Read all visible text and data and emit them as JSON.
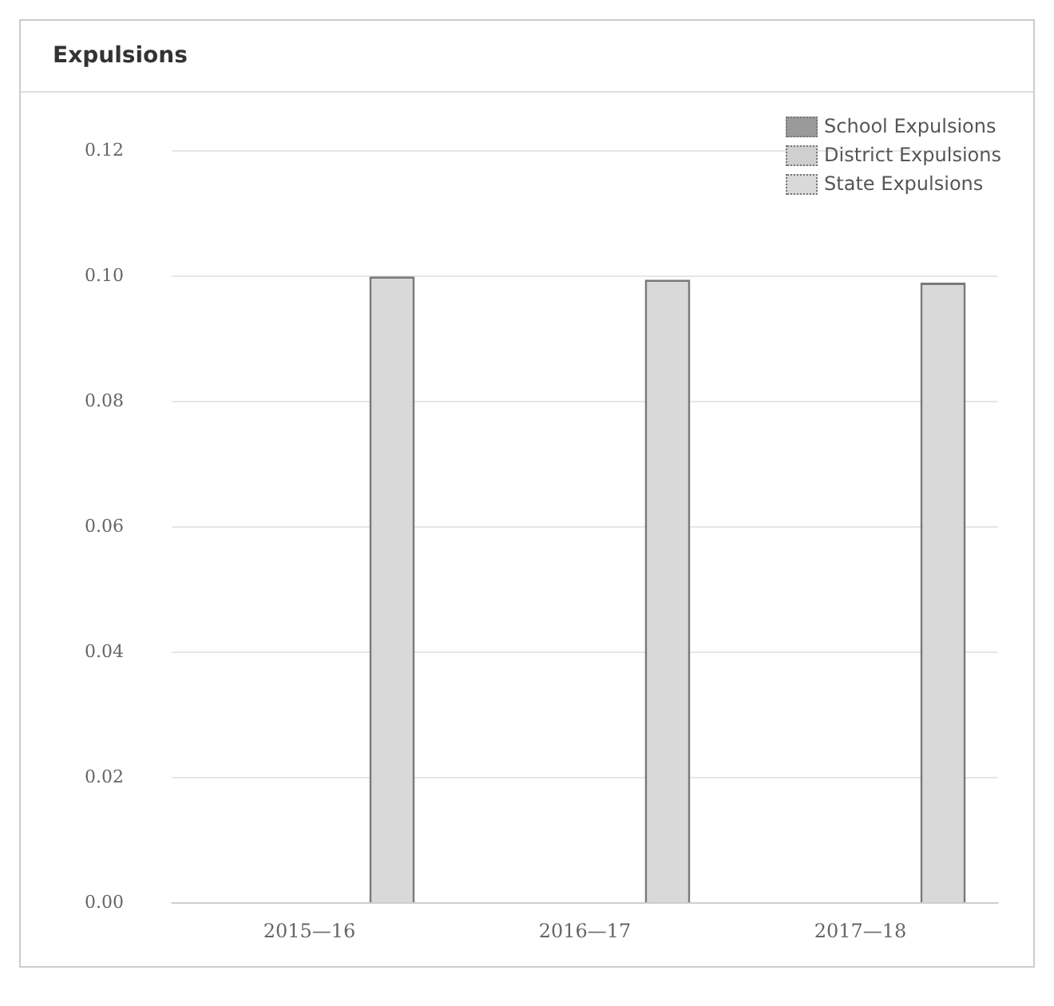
{
  "chart_data": {
    "type": "bar",
    "title": "Expulsions",
    "categories": [
      "2015—16",
      "2016—17",
      "2017—18"
    ],
    "series": [
      {
        "name": "School Expulsions",
        "color": "#9a9a9a",
        "values": [
          0,
          0,
          0
        ]
      },
      {
        "name": "District Expulsions",
        "color": "#cfcfcf",
        "values": [
          0,
          0,
          0
        ]
      },
      {
        "name": "State Expulsions",
        "color": "#d9d9d9",
        "values": [
          0.1,
          0.0995,
          0.099
        ]
      }
    ],
    "ylim": [
      0,
      0.12
    ],
    "yticks": [
      {
        "value": 0,
        "label": "0.00"
      },
      {
        "value": 0.02,
        "label": "0.02"
      },
      {
        "value": 0.04,
        "label": "0.04"
      },
      {
        "value": 0.06,
        "label": "0.06"
      },
      {
        "value": 0.08,
        "label": "0.08"
      },
      {
        "value": 0.1,
        "label": "0.10"
      },
      {
        "value": 0.12,
        "label": "0.12"
      }
    ],
    "grid": "y",
    "legend": "top right"
  }
}
